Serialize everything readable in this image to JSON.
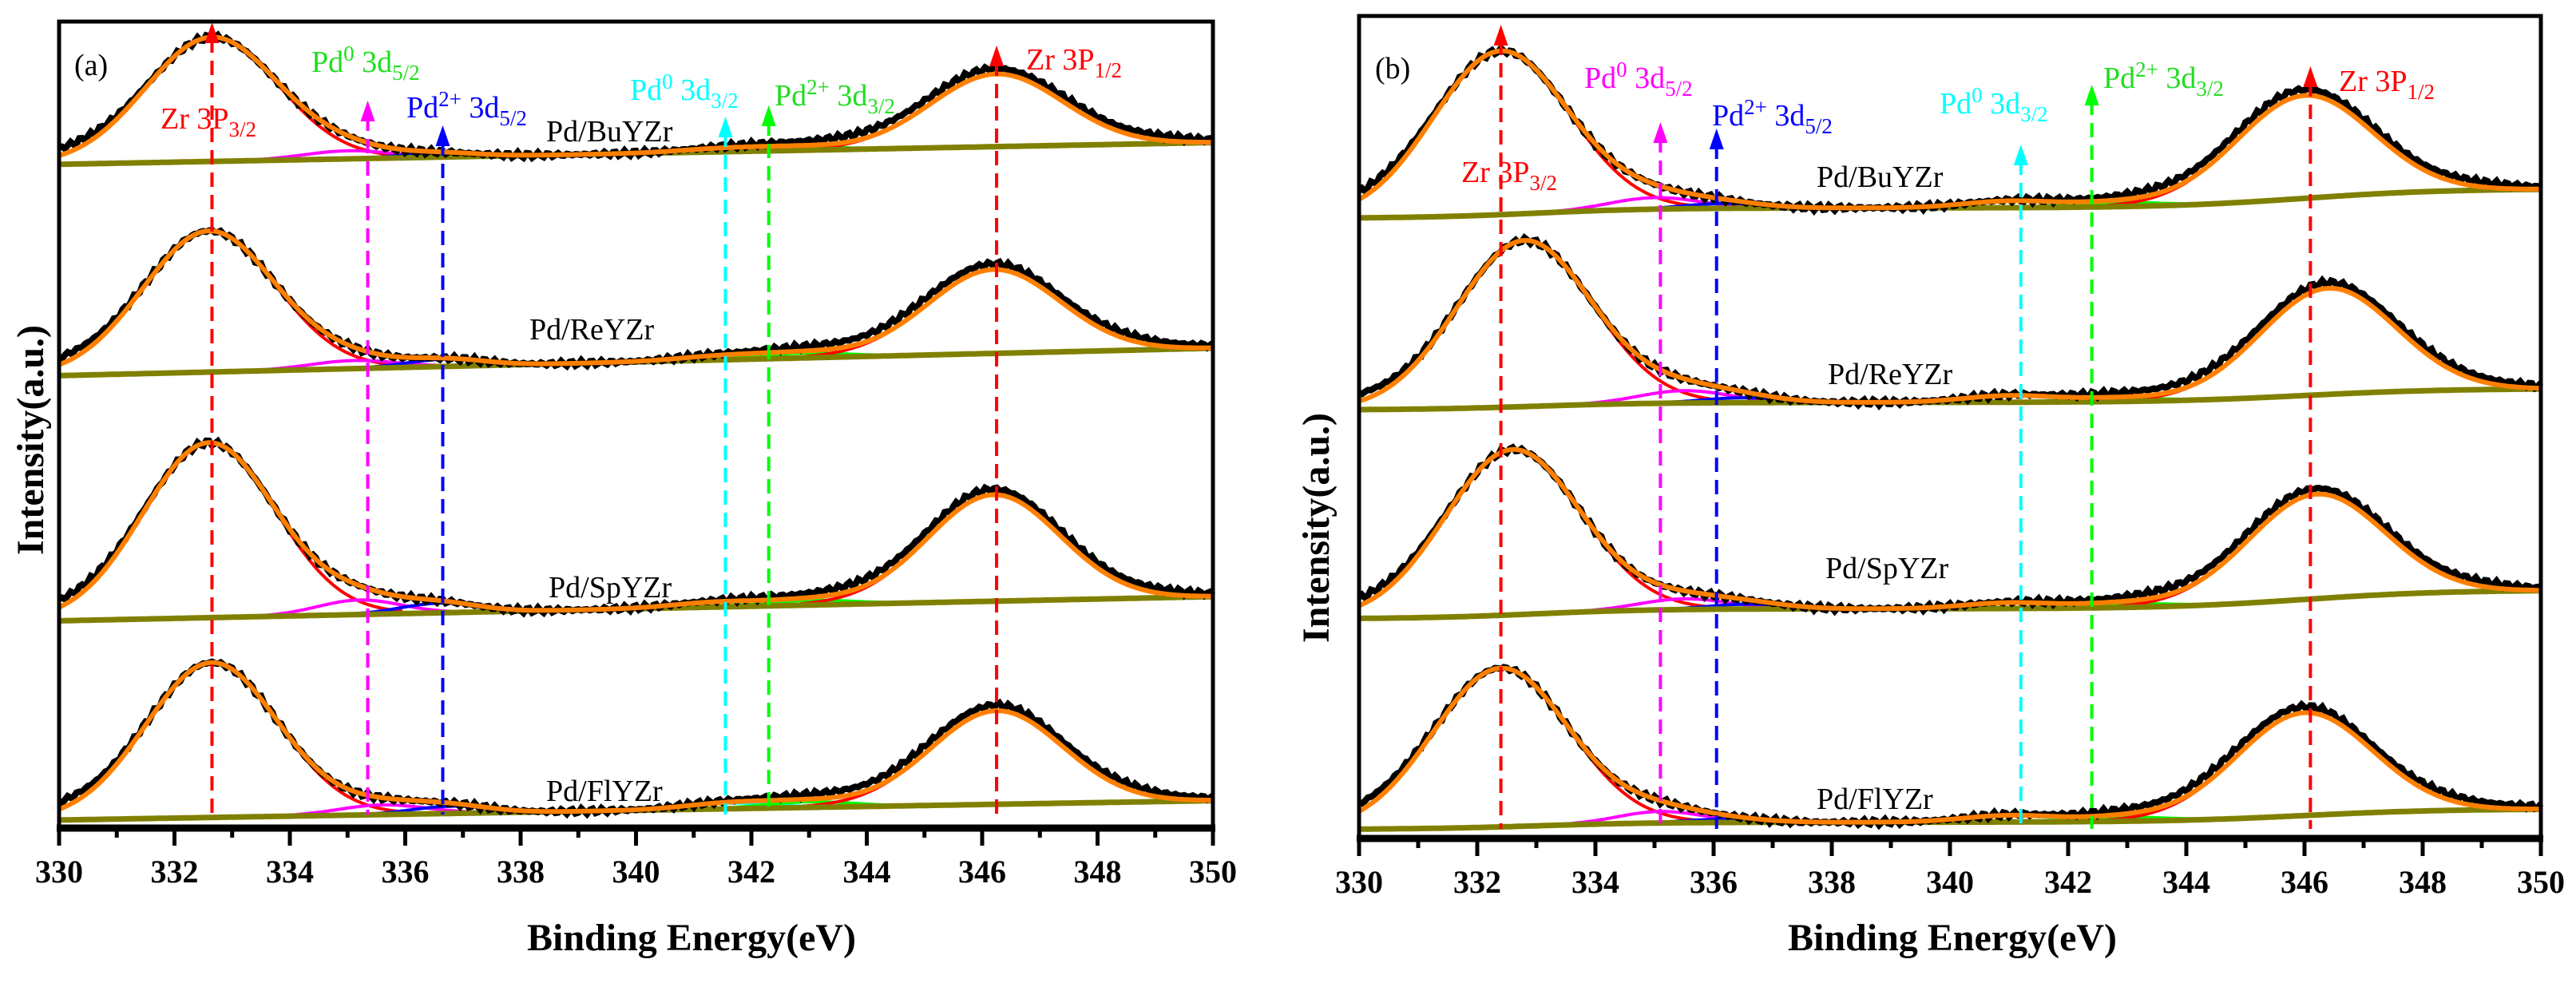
{
  "colors": {
    "experimental": "#000000",
    "fit": "#ff7f00",
    "background": "#808000",
    "zr": "#ff0000",
    "pd0_52": "#ff00ff",
    "pd2_52": "#0000ff",
    "pd0_32": "#00ffff",
    "pd2_32": "#00ff00",
    "green_label": "#22dd22"
  },
  "chart_data": [
    {
      "panel": "(a)",
      "type": "line",
      "title": "",
      "xlabel": "Binding Energy(eV)",
      "ylabel": "Intensity(a.u.)",
      "xlim": [
        330,
        350
      ],
      "ylim": [
        0,
        100
      ],
      "grid": false,
      "xticks": [
        "330",
        "332",
        "334",
        "336",
        "338",
        "340",
        "342",
        "344",
        "346",
        "348",
        "350"
      ],
      "baseline_type": "linear",
      "markers": [
        {
          "id": "zr32",
          "pre": "Zr 3P",
          "sup": "",
          "mid": "",
          "sub": "3/2",
          "energy": 332.65,
          "line_color": "#ff0000",
          "label_color": "#ff0000"
        },
        {
          "id": "pd0_52",
          "pre": "Pd",
          "sup": "0",
          "mid": " 3d",
          "sub": "5/2",
          "energy": 335.35,
          "line_color": "#ff00ff",
          "label_color": "#22dd22"
        },
        {
          "id": "pd2_52",
          "pre": "Pd",
          "sup": "2+",
          "mid": " 3d",
          "sub": "5/2",
          "energy": 336.65,
          "line_color": "#0000ff",
          "label_color": "#0000ff"
        },
        {
          "id": "pd0_32",
          "pre": "Pd",
          "sup": "0",
          "mid": " 3d",
          "sub": "3/2",
          "energy": 341.55,
          "line_color": "#00ffff",
          "label_color": "#00ffff"
        },
        {
          "id": "pd2_32",
          "pre": "Pd",
          "sup": "2+",
          "mid": " 3d",
          "sub": "3/2",
          "energy": 342.3,
          "line_color": "#00ff00",
          "label_color": "#22dd22"
        },
        {
          "id": "zr12",
          "pre": "Zr 3P",
          "sup": "",
          "mid": "",
          "sub": "1/2",
          "energy": 346.25,
          "line_color": "#ff0000",
          "label_color": "#ff0000"
        }
      ],
      "samples": [
        {
          "name": "Pd/BuYZr",
          "baseline": [
            82.3,
            85.0
          ],
          "peaks": [
            {
              "component": "zr32",
              "center": 332.65,
              "amp": 15.4,
              "fwhm": 2.7
            },
            {
              "component": "pd0_52",
              "center": 335.0,
              "amp": 1.0,
              "fwhm": 1.8
            },
            {
              "component": "pd2_52",
              "center": 336.6,
              "amp": 0.5,
              "fwhm": 1.6
            },
            {
              "component": "pd0_32",
              "center": 341.5,
              "amp": 0.4,
              "fwhm": 1.8
            },
            {
              "component": "pd2_32",
              "center": 342.8,
              "amp": 0.4,
              "fwhm": 1.8
            },
            {
              "component": "zr12",
              "center": 346.25,
              "amp": 9.0,
              "fwhm": 2.7
            }
          ]
        },
        {
          "name": "Pd/ReYZr",
          "baseline": [
            56.1,
            59.5
          ],
          "peaks": [
            {
              "component": "zr32",
              "center": 332.6,
              "amp": 17.5,
              "fwhm": 2.7
            },
            {
              "component": "pd0_52",
              "center": 335.1,
              "amp": 1.0,
              "fwhm": 1.8
            },
            {
              "component": "pd2_52",
              "center": 336.7,
              "amp": 0.9,
              "fwhm": 1.6
            },
            {
              "component": "pd0_32",
              "center": 341.5,
              "amp": 0.5,
              "fwhm": 1.8
            },
            {
              "component": "pd2_32",
              "center": 342.9,
              "amp": 0.6,
              "fwhm": 1.8
            },
            {
              "component": "zr12",
              "center": 346.2,
              "amp": 10.4,
              "fwhm": 2.7
            }
          ]
        },
        {
          "name": "Pd/SpYZr",
          "baseline": [
            25.7,
            28.7
          ],
          "peaks": [
            {
              "component": "zr32",
              "center": 332.6,
              "amp": 21.7,
              "fwhm": 2.7
            },
            {
              "component": "pd0_52",
              "center": 335.2,
              "amp": 1.8,
              "fwhm": 1.7
            },
            {
              "component": "pd2_52",
              "center": 336.6,
              "amp": 1.2,
              "fwhm": 1.6
            },
            {
              "component": "pd0_32",
              "center": 341.4,
              "amp": 0.6,
              "fwhm": 1.8
            },
            {
              "component": "pd2_32",
              "center": 343.0,
              "amp": 0.6,
              "fwhm": 1.8
            },
            {
              "component": "zr12",
              "center": 346.2,
              "amp": 13.2,
              "fwhm": 2.7
            }
          ]
        },
        {
          "name": "Pd/FlYZr",
          "baseline": [
            1.0,
            3.4
          ],
          "peaks": [
            {
              "component": "zr32",
              "center": 332.65,
              "amp": 19.2,
              "fwhm": 2.7
            },
            {
              "component": "pd0_52",
              "center": 335.6,
              "amp": 1.2,
              "fwhm": 1.8
            },
            {
              "component": "pd2_52",
              "center": 336.8,
              "amp": 0.9,
              "fwhm": 1.6
            },
            {
              "component": "pd0_32",
              "center": 341.6,
              "amp": 0.7,
              "fwhm": 1.8
            },
            {
              "component": "pd2_32",
              "center": 343.0,
              "amp": 0.7,
              "fwhm": 1.8
            },
            {
              "component": "zr12",
              "center": 346.25,
              "amp": 11.6,
              "fwhm": 2.7
            }
          ]
        }
      ]
    },
    {
      "panel": "(b)",
      "type": "line",
      "title": "",
      "xlabel": "Binding Energy(eV)",
      "ylabel": "Intensity(a.u.)",
      "xlim": [
        330,
        350
      ],
      "ylim": [
        0,
        100
      ],
      "grid": false,
      "xticks": [
        "330",
        "332",
        "334",
        "336",
        "338",
        "340",
        "342",
        "344",
        "346",
        "348",
        "350"
      ],
      "baseline_type": "shirley",
      "markers": [
        {
          "id": "zr32",
          "pre": "Zr 3P",
          "sup": "",
          "mid": "",
          "sub": "3/2",
          "energy": 332.4,
          "line_color": "#ff0000",
          "label_color": "#ff0000"
        },
        {
          "id": "pd0_52",
          "pre": "Pd",
          "sup": "0",
          "mid": " 3d",
          "sub": "5/2",
          "energy": 335.1,
          "line_color": "#ff00ff",
          "label_color": "#ff00ff"
        },
        {
          "id": "pd2_52",
          "pre": "Pd",
          "sup": "2+",
          "mid": " 3d",
          "sub": "5/2",
          "energy": 336.05,
          "line_color": "#0000ff",
          "label_color": "#0000ff"
        },
        {
          "id": "pd0_32",
          "pre": "Pd",
          "sup": "0",
          "mid": " 3d",
          "sub": "3/2",
          "energy": 341.2,
          "line_color": "#00ffff",
          "label_color": "#00ffff"
        },
        {
          "id": "pd2_32",
          "pre": "Pd",
          "sup": "2+",
          "mid": " 3d",
          "sub": "3/2",
          "energy": 342.4,
          "line_color": "#00ff00",
          "label_color": "#22dd22"
        },
        {
          "id": "zr12",
          "pre": "Zr 3P",
          "sup": "",
          "mid": "",
          "sub": "1/2",
          "energy": 346.1,
          "line_color": "#ff0000",
          "label_color": "#ff0000"
        }
      ],
      "samples": [
        {
          "name": "Pd/BuYZr",
          "baseline": [
            75.4,
            79.0
          ],
          "peaks": [
            {
              "component": "zr32",
              "center": 332.4,
              "amp": 19.9,
              "fwhm": 2.7
            },
            {
              "component": "pd0_52",
              "center": 335.0,
              "amp": 1.4,
              "fwhm": 1.8
            },
            {
              "component": "pd2_52",
              "center": 336.2,
              "amp": 0.6,
              "fwhm": 1.6
            },
            {
              "component": "pd0_32",
              "center": 341.0,
              "amp": 0.8,
              "fwhm": 1.8
            },
            {
              "component": "pd2_32",
              "center": 342.8,
              "amp": 0.5,
              "fwhm": 1.8
            },
            {
              "component": "zr12",
              "center": 346.0,
              "amp": 12.5,
              "fwhm": 2.7
            }
          ]
        },
        {
          "name": "Pd/ReYZr",
          "baseline": [
            52.1,
            54.7
          ],
          "peaks": [
            {
              "component": "zr32",
              "center": 332.8,
              "amp": 20.2,
              "fwhm": 2.7
            },
            {
              "component": "pd0_52",
              "center": 335.5,
              "amp": 1.5,
              "fwhm": 1.8
            },
            {
              "component": "pd2_52",
              "center": 336.5,
              "amp": 0.6,
              "fwhm": 1.6
            },
            {
              "component": "pd0_32",
              "center": 341.0,
              "amp": 0.8,
              "fwhm": 1.8
            },
            {
              "component": "pd2_32",
              "center": 342.8,
              "amp": 0.4,
              "fwhm": 1.8
            },
            {
              "component": "zr12",
              "center": 346.4,
              "amp": 12.9,
              "fwhm": 2.7
            }
          ]
        },
        {
          "name": "Pd/SpYZr",
          "baseline": [
            26.7,
            30.2
          ],
          "peaks": [
            {
              "component": "zr32",
              "center": 332.6,
              "amp": 20.1,
              "fwhm": 2.7
            },
            {
              "component": "pd0_52",
              "center": 335.5,
              "amp": 1.3,
              "fwhm": 1.8
            },
            {
              "component": "pd2_52",
              "center": 336.6,
              "amp": 0.6,
              "fwhm": 1.6
            },
            {
              "component": "pd0_32",
              "center": 341.0,
              "amp": 0.7,
              "fwhm": 1.8
            },
            {
              "component": "pd2_32",
              "center": 342.9,
              "amp": 0.5,
              "fwhm": 1.8
            },
            {
              "component": "zr12",
              "center": 346.2,
              "amp": 12.7,
              "fwhm": 2.7
            }
          ]
        },
        {
          "name": "Pd/FlYZr",
          "baseline": [
            1.1,
            3.6
          ],
          "peaks": [
            {
              "component": "zr32",
              "center": 332.4,
              "amp": 19.3,
              "fwhm": 2.7
            },
            {
              "component": "pd0_52",
              "center": 335.1,
              "amp": 1.4,
              "fwhm": 1.7
            },
            {
              "component": "pd2_52",
              "center": 336.2,
              "amp": 0.4,
              "fwhm": 1.6
            },
            {
              "component": "pd0_32",
              "center": 341.0,
              "amp": 0.8,
              "fwhm": 1.8
            },
            {
              "component": "pd2_32",
              "center": 342.9,
              "amp": 0.5,
              "fwhm": 1.8
            },
            {
              "component": "zr12",
              "center": 346.0,
              "amp": 12.5,
              "fwhm": 2.7
            }
          ]
        }
      ]
    }
  ]
}
